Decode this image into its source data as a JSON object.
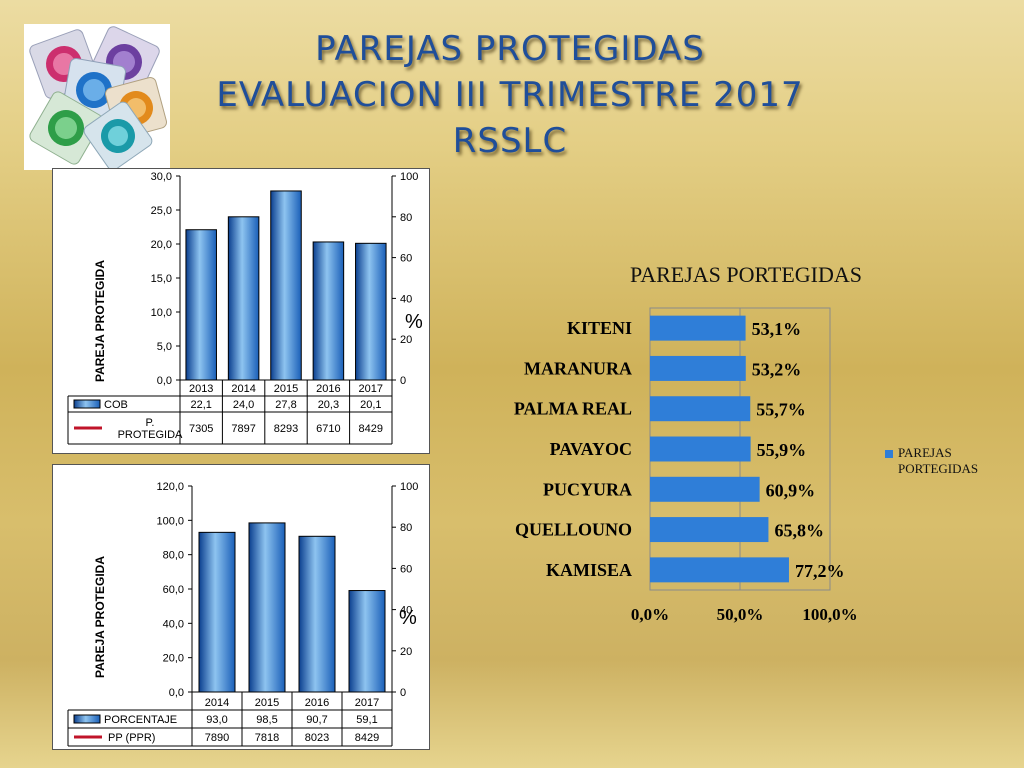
{
  "title": {
    "line1": "PAREJAS PROTEGIDAS",
    "line2": "EVALUACION  III TRIMESTRE 2017",
    "line3": "RSSLC"
  },
  "colors": {
    "bar": "#2f7ed8",
    "line": "#c0142a",
    "title": "#1f4e9a"
  },
  "icons": [
    "condom-packets-image"
  ],
  "chart_data": [
    {
      "type": "bar",
      "categories": [
        "2013",
        "2014",
        "2015",
        "2016",
        "2017"
      ],
      "series": [
        {
          "name": "COB",
          "values": [
            "22,1",
            "24,0",
            "27,8",
            "20,3",
            "20,1"
          ],
          "numeric": [
            22.1,
            24.0,
            27.8,
            20.3,
            20.1
          ]
        },
        {
          "name": "P. PROTEGIDA",
          "values": [
            "7305",
            "7897",
            "8293",
            "6710",
            "8429"
          ]
        }
      ],
      "ylabel": "PAREJA PROTEGIDA",
      "y2label": "%",
      "ylim": [
        0,
        30
      ],
      "yticks": [
        "0,0",
        "5,0",
        "10,0",
        "15,0",
        "20,0",
        "25,0",
        "30,0"
      ],
      "y2ticks": [
        "0",
        "20",
        "40",
        "60",
        "80",
        "100"
      ],
      "table": true
    },
    {
      "type": "bar",
      "categories": [
        "2014",
        "2015",
        "2016",
        "2017"
      ],
      "series": [
        {
          "name": "PORCENTAJE",
          "values": [
            "93,0",
            "98,5",
            "90,7",
            "59,1"
          ],
          "numeric": [
            93.0,
            98.5,
            90.7,
            59.1
          ]
        },
        {
          "name": "PP (PPR)",
          "values": [
            "7890",
            "7818",
            "8023",
            "8429"
          ]
        }
      ],
      "ylabel": "PAREJA PROTEGIDA",
      "y2label": "%",
      "ylim": [
        0,
        120
      ],
      "yticks": [
        "0,0",
        "20,0",
        "40,0",
        "60,0",
        "80,0",
        "100,0",
        "120,0"
      ],
      "y2ticks": [
        "0",
        "20",
        "40",
        "60",
        "80",
        "100"
      ],
      "table": true
    },
    {
      "type": "bar",
      "orientation": "horizontal",
      "title": "PAREJAS PORTEGIDAS",
      "categories": [
        "KITENI",
        "MARANURA",
        "PALMA REAL",
        "PAVAYOC",
        "PUCYURA",
        "QUELLOUNO",
        "KAMISEA"
      ],
      "series": [
        {
          "name": "PAREJAS PORTEGIDAS",
          "values": [
            53.1,
            53.2,
            55.7,
            55.9,
            60.9,
            65.8,
            77.2
          ],
          "labels": [
            "53,1%",
            "53,2%",
            "55,7%",
            "55,9%",
            "60,9%",
            "65,8%",
            "77,2%"
          ]
        }
      ],
      "xlim": [
        0,
        100
      ],
      "xticks": [
        "0,0%",
        "50,0%",
        "100,0%"
      ],
      "legend": "right"
    }
  ]
}
